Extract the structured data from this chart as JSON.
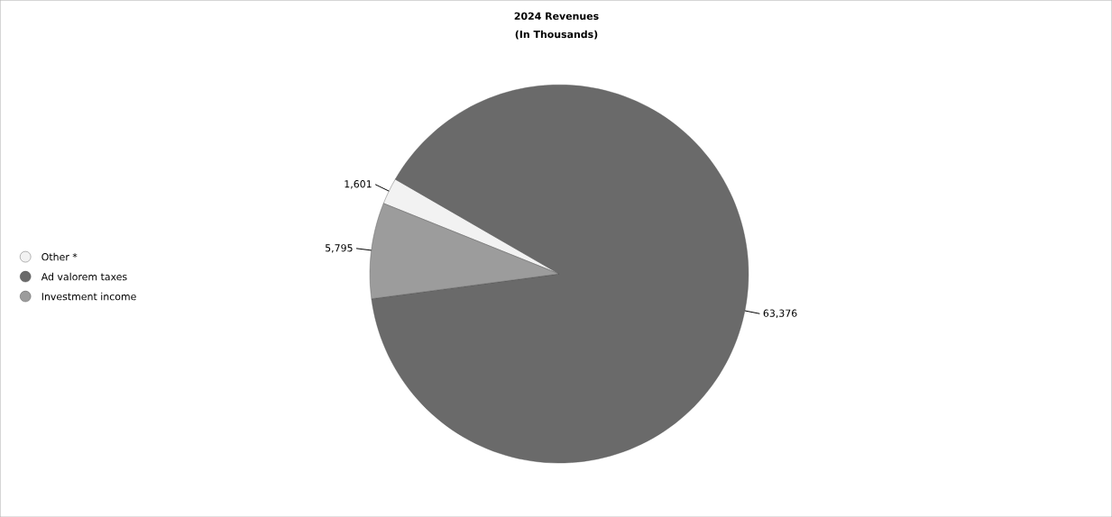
{
  "chart_data": {
    "type": "pie",
    "title": "2024 Revenues",
    "subtitle": "(In Thousands)",
    "categories": [
      "Other *",
      "Ad valorem taxes",
      "Investment income"
    ],
    "values": [
      1601,
      63376,
      5795
    ],
    "value_labels": [
      "1,601",
      "63,376",
      "5,795"
    ],
    "colors": [
      "#f2f2f2",
      "#6a6a6a",
      "#9c9c9c"
    ],
    "legend": "left"
  }
}
